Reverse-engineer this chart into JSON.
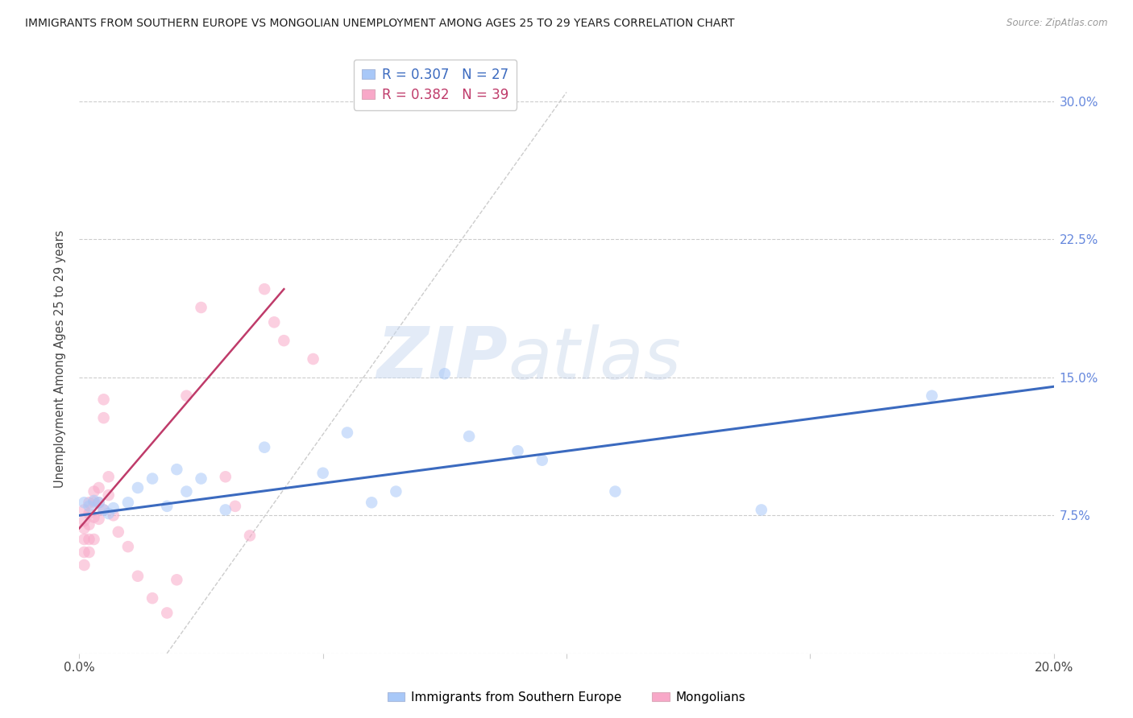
{
  "title": "IMMIGRANTS FROM SOUTHERN EUROPE VS MONGOLIAN UNEMPLOYMENT AMONG AGES 25 TO 29 YEARS CORRELATION CHART",
  "source": "Source: ZipAtlas.com",
  "ylabel": "Unemployment Among Ages 25 to 29 years",
  "xlim": [
    0.0,
    0.2
  ],
  "ylim": [
    0.0,
    0.32
  ],
  "yticks": [
    0.0,
    0.075,
    0.15,
    0.225,
    0.3
  ],
  "ytick_labels": [
    "",
    "7.5%",
    "15.0%",
    "22.5%",
    "30.0%"
  ],
  "xticks": [
    0.0,
    0.05,
    0.1,
    0.15,
    0.2
  ],
  "xtick_labels": [
    "0.0%",
    "",
    "",
    "",
    "20.0%"
  ],
  "legend_label1": "Immigrants from Southern Europe",
  "legend_label2": "Mongolians",
  "R1": "0.307",
  "N1": "27",
  "R2": "0.382",
  "N2": "39",
  "blue_scatter_x": [
    0.001,
    0.002,
    0.003,
    0.004,
    0.005,
    0.006,
    0.007,
    0.01,
    0.012,
    0.015,
    0.018,
    0.02,
    0.022,
    0.025,
    0.03,
    0.038,
    0.05,
    0.055,
    0.06,
    0.065,
    0.075,
    0.08,
    0.09,
    0.095,
    0.11,
    0.14,
    0.175
  ],
  "blue_scatter_y": [
    0.082,
    0.08,
    0.083,
    0.082,
    0.078,
    0.076,
    0.079,
    0.082,
    0.09,
    0.095,
    0.08,
    0.1,
    0.088,
    0.095,
    0.078,
    0.112,
    0.098,
    0.12,
    0.082,
    0.088,
    0.152,
    0.118,
    0.11,
    0.105,
    0.088,
    0.078,
    0.14
  ],
  "pink_scatter_x": [
    0.001,
    0.001,
    0.001,
    0.001,
    0.001,
    0.001,
    0.002,
    0.002,
    0.002,
    0.002,
    0.002,
    0.003,
    0.003,
    0.003,
    0.003,
    0.004,
    0.004,
    0.004,
    0.005,
    0.005,
    0.005,
    0.006,
    0.006,
    0.007,
    0.008,
    0.01,
    0.012,
    0.015,
    0.018,
    0.02,
    0.022,
    0.025,
    0.03,
    0.032,
    0.035,
    0.038,
    0.04,
    0.042,
    0.048
  ],
  "pink_scatter_y": [
    0.078,
    0.072,
    0.068,
    0.062,
    0.055,
    0.048,
    0.082,
    0.076,
    0.07,
    0.062,
    0.055,
    0.088,
    0.082,
    0.074,
    0.062,
    0.09,
    0.082,
    0.073,
    0.138,
    0.128,
    0.078,
    0.096,
    0.086,
    0.075,
    0.066,
    0.058,
    0.042,
    0.03,
    0.022,
    0.04,
    0.14,
    0.188,
    0.096,
    0.08,
    0.064,
    0.198,
    0.18,
    0.17,
    0.16
  ],
  "blue_line_x": [
    0.0,
    0.2
  ],
  "blue_line_y": [
    0.075,
    0.145
  ],
  "pink_line_x": [
    0.0,
    0.042
  ],
  "pink_line_y": [
    0.068,
    0.198
  ],
  "diagonal_line_x": [
    0.018,
    0.1
  ],
  "diagonal_line_y": [
    0.0,
    0.305
  ],
  "scatter_size": 110,
  "scatter_alpha": 0.55,
  "blue_color": "#a8c8f8",
  "pink_color": "#f8a8c8",
  "blue_line_color": "#3b6abf",
  "pink_line_color": "#bf3b6a",
  "watermark_zip": "ZIP",
  "watermark_atlas": "atlas",
  "background_color": "#ffffff",
  "grid_color": "#cccccc"
}
